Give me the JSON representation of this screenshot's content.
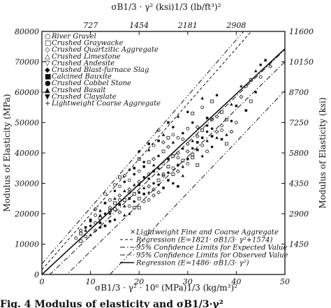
{
  "chart_data": {
    "type": "scatter",
    "top_axis_title": "σB1/3 · γ²   (ksi)1/3  (lb/ft³)²",
    "xlabel": "σB1/3 · γ² · 10⁶   (MPa)1/3  (kg/m³)²",
    "ylabel_left": "Modulus of Elasticity (MPa)",
    "ylabel_right": "Modulus of Elasticity (ksi)",
    "xlim": [
      0,
      50
    ],
    "ylim": [
      0,
      80000
    ],
    "x_ticks": [
      "0",
      "10",
      "20",
      "30",
      "40",
      "50"
    ],
    "y_ticks": [
      "0",
      "10000",
      "20000",
      "30000",
      "40000",
      "50000",
      "60000",
      "70000",
      "80000"
    ],
    "top_ticks": [
      "727",
      "1454",
      "2181",
      "2908"
    ],
    "right_ticks": [
      "1450",
      "2900",
      "4350",
      "5800",
      "7250",
      "8700",
      "10150",
      "11600"
    ],
    "legend_top": [
      {
        "marker": "○",
        "label": "River Gravel"
      },
      {
        "marker": "□",
        "label": "Crushed Graywacke"
      },
      {
        "marker": "◇",
        "label": "Crushed Quartzitic Aggregate"
      },
      {
        "marker": "△",
        "label": "Crushed Limestone"
      },
      {
        "marker": "▽",
        "label": "Crushed Andesite"
      },
      {
        "marker": "◆",
        "label": "Crushed Blast-furnace Slag"
      },
      {
        "marker": "■",
        "label": "Calcined Bauxite"
      },
      {
        "marker": "●",
        "label": "Crushed Cobbel Stone"
      },
      {
        "marker": "▲",
        "label": "Crushed Basalt"
      },
      {
        "marker": "▼",
        "label": "Crushed Clayslate"
      },
      {
        "marker": "+",
        "label": "Lightweight Coarse Aggregate"
      }
    ],
    "legend_bottom": [
      {
        "style": "marker-x",
        "label": "Lightweight Fine and Coarse Aggregate"
      },
      {
        "style": "dashed",
        "label": "Regression (E=1821· σB1/3· γ²+1574)"
      },
      {
        "style": "dashdot",
        "label": "95% Confidence Limits for Expected Value"
      },
      {
        "style": "dashdotdot",
        "label": "95% Confidence Limits for Observed Value"
      },
      {
        "style": "solid",
        "label": "Regression (E=1486· σB1/3· γ²)"
      }
    ],
    "lines": [
      {
        "style": "solid",
        "slope": 1486,
        "intercept": 0
      },
      {
        "style": "dashed",
        "slope": 1821,
        "intercept": 1574
      },
      {
        "style": "dashdot",
        "points": [
          [
            0,
            -8000
          ],
          [
            50,
            70000
          ]
        ]
      },
      {
        "style": "dashdot",
        "points": [
          [
            0,
            -2500
          ],
          [
            50,
            74000
          ]
        ]
      },
      {
        "style": "dashdotdot",
        "points": [
          [
            14,
            0
          ],
          [
            50,
            60500
          ]
        ]
      },
      {
        "style": "dashdotdot",
        "points": [
          [
            0,
            3500
          ],
          [
            41.5,
            80000
          ]
        ]
      }
    ],
    "points": [
      [
        7,
        12000
      ],
      [
        8,
        13500
      ],
      [
        9,
        14500
      ],
      [
        10,
        16000
      ],
      [
        10,
        18000
      ],
      [
        11,
        17000
      ],
      [
        11,
        19500
      ],
      [
        12,
        18500
      ],
      [
        12,
        21000
      ],
      [
        13,
        20000
      ],
      [
        13,
        23500
      ],
      [
        14,
        22000
      ],
      [
        14,
        24500
      ],
      [
        15,
        21500
      ],
      [
        15,
        25000
      ],
      [
        15,
        27500
      ],
      [
        16,
        23000
      ],
      [
        16,
        26000
      ],
      [
        16,
        29000
      ],
      [
        17,
        24500
      ],
      [
        17,
        27500
      ],
      [
        17,
        30500
      ],
      [
        18,
        25000
      ],
      [
        18,
        28000
      ],
      [
        18,
        31000
      ],
      [
        19,
        26500
      ],
      [
        19,
        29500
      ],
      [
        19,
        33000
      ],
      [
        20,
        27000
      ],
      [
        20,
        30500
      ],
      [
        20,
        34000
      ],
      [
        20,
        38000
      ],
      [
        21,
        28500
      ],
      [
        21,
        32000
      ],
      [
        21,
        35500
      ],
      [
        22,
        29000
      ],
      [
        22,
        33000
      ],
      [
        22,
        37000
      ],
      [
        22,
        41000
      ],
      [
        23,
        30000
      ],
      [
        23,
        34000
      ],
      [
        23,
        38000
      ],
      [
        23,
        42500
      ],
      [
        24,
        31000
      ],
      [
        24,
        35000
      ],
      [
        24,
        39000
      ],
      [
        24,
        44000
      ],
      [
        25,
        32500
      ],
      [
        25,
        36500
      ],
      [
        25,
        40500
      ],
      [
        25,
        46000
      ],
      [
        26,
        33500
      ],
      [
        26,
        38000
      ],
      [
        26,
        42000
      ],
      [
        27,
        35000
      ],
      [
        27,
        39000
      ],
      [
        27,
        43500
      ],
      [
        27,
        48500
      ],
      [
        28,
        36000
      ],
      [
        28,
        40000
      ],
      [
        28,
        45000
      ],
      [
        29,
        37500
      ],
      [
        29,
        41500
      ],
      [
        29,
        46500
      ],
      [
        30,
        38000
      ],
      [
        30,
        43000
      ],
      [
        30,
        48000
      ],
      [
        31,
        39500
      ],
      [
        31,
        44000
      ],
      [
        31,
        50000
      ],
      [
        32,
        41000
      ],
      [
        32,
        45500
      ],
      [
        33,
        42500
      ],
      [
        33,
        47500
      ],
      [
        34,
        44000
      ],
      [
        34,
        49000
      ],
      [
        35,
        45500
      ],
      [
        36,
        47000
      ],
      [
        37,
        49000
      ],
      [
        38,
        51000
      ],
      [
        28,
        52000
      ],
      [
        30,
        53500
      ],
      [
        26,
        50000
      ],
      [
        24,
        47500
      ],
      [
        33,
        55000
      ],
      [
        35,
        57000
      ],
      [
        38,
        46000
      ],
      [
        39,
        50500
      ],
      [
        40,
        55500
      ],
      [
        41,
        58500
      ],
      [
        42,
        62000
      ],
      [
        43,
        64000
      ],
      [
        44,
        67000
      ],
      [
        45,
        69000
      ],
      [
        46,
        70500
      ],
      [
        47,
        68500
      ],
      [
        45,
        65000
      ],
      [
        43,
        57000
      ],
      [
        41,
        62000
      ],
      [
        44,
        60000
      ],
      [
        42,
        54000
      ],
      [
        36,
        52000
      ],
      [
        34,
        40500
      ],
      [
        32,
        36000
      ],
      [
        29,
        32500
      ],
      [
        27,
        30000
      ],
      [
        25,
        28500
      ],
      [
        23,
        26000
      ],
      [
        21,
        24000
      ],
      [
        19,
        22000
      ],
      [
        17,
        19500
      ],
      [
        15,
        18000
      ],
      [
        13,
        16000
      ],
      [
        11,
        14500
      ],
      [
        9,
        12500
      ],
      [
        8,
        11000
      ],
      [
        10,
        13000
      ],
      [
        12,
        15500
      ],
      [
        14,
        17500
      ],
      [
        16,
        20500
      ],
      [
        18,
        22500
      ],
      [
        20,
        25000
      ],
      [
        22,
        27000
      ],
      [
        24,
        29500
      ],
      [
        26,
        31000
      ],
      [
        28,
        34000
      ],
      [
        30,
        36500
      ],
      [
        31,
        38500
      ],
      [
        33,
        39000
      ],
      [
        35,
        42000
      ],
      [
        37,
        44500
      ],
      [
        39,
        47000
      ],
      [
        40,
        50000
      ],
      [
        37,
        53500
      ],
      [
        39,
        56000
      ],
      [
        36,
        59000
      ],
      [
        34,
        51500
      ],
      [
        32,
        48500
      ],
      [
        29,
        44500
      ],
      [
        26,
        45000
      ],
      [
        23,
        36000
      ],
      [
        21,
        37000
      ],
      [
        19,
        35000
      ],
      [
        17,
        32500
      ],
      [
        15,
        29500
      ],
      [
        16,
        32000
      ],
      [
        18,
        34500
      ],
      [
        20,
        40500
      ],
      [
        22,
        43000
      ],
      [
        25,
        43500
      ],
      [
        27,
        46000
      ],
      [
        31,
        53000
      ],
      [
        33,
        58000
      ],
      [
        35,
        48000
      ],
      [
        28,
        29000
      ],
      [
        24,
        27000
      ],
      [
        22,
        24500
      ],
      [
        20,
        22000
      ],
      [
        18,
        20000
      ],
      [
        14,
        20000
      ],
      [
        12,
        17000
      ],
      [
        11,
        21500
      ],
      [
        13,
        26500
      ],
      [
        15,
        23500
      ],
      [
        17,
        22500
      ],
      [
        19,
        24000
      ],
      [
        21,
        26500
      ],
      [
        23,
        28000
      ],
      [
        25,
        33000
      ],
      [
        27,
        33000
      ],
      [
        29,
        35500
      ],
      [
        31,
        41500
      ],
      [
        33,
        45000
      ],
      [
        35,
        51000
      ],
      [
        37,
        47500
      ],
      [
        38,
        43000
      ],
      [
        36,
        45000
      ],
      [
        34,
        47000
      ],
      [
        32,
        43500
      ],
      [
        30,
        40500
      ],
      [
        28,
        38500
      ],
      [
        26,
        35500
      ],
      [
        24,
        33000
      ],
      [
        22,
        31500
      ],
      [
        20,
        29500
      ],
      [
        18,
        27000
      ],
      [
        16,
        24500
      ],
      [
        14,
        21000
      ],
      [
        12,
        19500
      ],
      [
        10,
        17500
      ],
      [
        9,
        15500
      ],
      [
        8,
        14500
      ]
    ],
    "grid": false,
    "legend_position": "top-left and bottom-right"
  },
  "caption": "Fig. 4  Modulus of elasticity and σB1/3·γ²"
}
